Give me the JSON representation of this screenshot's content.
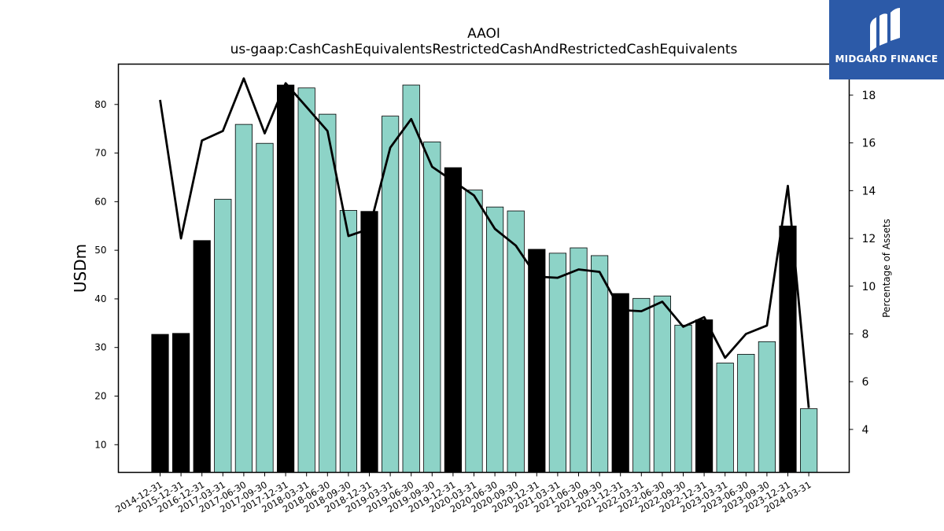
{
  "chart_data": {
    "type": "bar",
    "title": "AAOI",
    "subtitle": "us-gaap:CashCashEquivalentsRestrictedCashAndRestrictedCashEquivalents",
    "ylabel": "USDm",
    "y2label": "Percentage of Assets",
    "ylim": [
      4.3,
      88.3
    ],
    "y2lim": [
      2.2,
      19.3
    ],
    "yticks": [
      10,
      20,
      30,
      40,
      50,
      60,
      70,
      80
    ],
    "y2ticks": [
      4,
      6,
      8,
      10,
      12,
      14,
      16,
      18
    ],
    "categories": [
      "2014-12-31",
      "2015-12-31",
      "2016-12-31",
      "2017-03-31",
      "2017-06-30",
      "2017-09-30",
      "2017-12-31",
      "2018-03-31",
      "2018-06-30",
      "2018-09-30",
      "2018-12-31",
      "2019-03-31",
      "2019-06-30",
      "2019-09-30",
      "2019-12-31",
      "2020-03-31",
      "2020-06-30",
      "2020-09-30",
      "2020-12-31",
      "2021-03-31",
      "2021-06-30",
      "2021-09-30",
      "2021-12-31",
      "2022-03-31",
      "2022-06-30",
      "2022-09-30",
      "2022-12-31",
      "2023-03-31",
      "2023-06-30",
      "2023-09-30",
      "2023-12-31",
      "2024-03-31"
    ],
    "series": [
      {
        "type": "bar",
        "axis": "left",
        "values": [
          32.7,
          32.9,
          52.0,
          60.5,
          75.9,
          72.0,
          84.0,
          83.4,
          78.0,
          58.2,
          58.0,
          77.6,
          84.0,
          72.3,
          67.0,
          62.4,
          58.9,
          58.1,
          50.2,
          49.4,
          50.5,
          48.9,
          41.1,
          40.1,
          40.6,
          34.6,
          35.7,
          26.8,
          28.6,
          31.2,
          55.0,
          17.4
        ],
        "annual": [
          true,
          true,
          true,
          false,
          false,
          false,
          true,
          false,
          false,
          false,
          true,
          false,
          false,
          false,
          true,
          false,
          false,
          false,
          true,
          false,
          false,
          false,
          true,
          false,
          false,
          false,
          true,
          false,
          false,
          false,
          true,
          false
        ]
      },
      {
        "type": "line",
        "axis": "right",
        "values": [
          17.8,
          12.0,
          16.1,
          16.5,
          18.7,
          16.4,
          18.5,
          17.5,
          16.5,
          12.1,
          12.4,
          15.8,
          17.0,
          15.0,
          14.4,
          13.8,
          12.4,
          11.7,
          10.4,
          10.35,
          10.7,
          10.6,
          9.0,
          8.95,
          9.35,
          8.3,
          8.7,
          7.0,
          8.0,
          8.35,
          14.2,
          4.9
        ]
      }
    ],
    "colors": {
      "annual_bar": "#000000",
      "quarter_bar": "#8dd3c7",
      "line": "#000000"
    },
    "grid": false
  },
  "brand": {
    "name": "MIDGARD FINANCE",
    "icon": "midgard-logo-icon",
    "color": "#2c5aa8"
  }
}
